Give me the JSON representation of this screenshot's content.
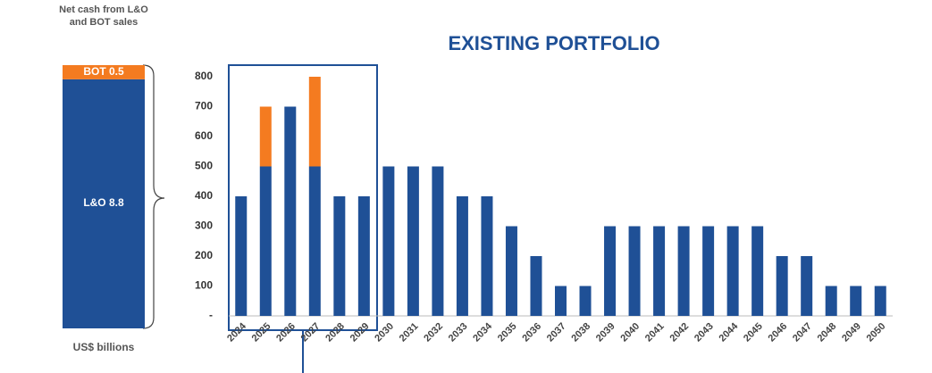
{
  "chart_data": {
    "type": "stacked_bar",
    "title": "EXISTING PORTFOLIO",
    "categories": [
      "2024",
      "2025",
      "2026",
      "2027",
      "2028",
      "2029",
      "2030",
      "2031",
      "2032",
      "2033",
      "2034",
      "2035",
      "2036",
      "2037",
      "2038",
      "2039",
      "2040",
      "2041",
      "2042",
      "2043",
      "2044",
      "2045",
      "2046",
      "2047",
      "2048",
      "2049",
      "2050"
    ],
    "series": [
      {
        "color": "#1f5096",
        "values": [
          400,
          500,
          700,
          500,
          400,
          400,
          500,
          500,
          500,
          400,
          400,
          300,
          200,
          100,
          100,
          300,
          300,
          300,
          300,
          300,
          300,
          300,
          200,
          200,
          100,
          100,
          100
        ]
      },
      {
        "color": "#f47b20",
        "values": [
          0,
          200,
          0,
          300,
          0,
          0,
          0,
          0,
          0,
          0,
          0,
          0,
          0,
          0,
          0,
          0,
          0,
          0,
          0,
          0,
          0,
          0,
          0,
          0,
          0,
          0,
          0
        ]
      }
    ],
    "ylim": [
      0,
      800
    ],
    "yticks": [
      {
        "value": 0,
        "label": "-"
      },
      100,
      200,
      300,
      400,
      500,
      600,
      700,
      800
    ],
    "summary": {
      "title": "Net cash from L&O and BOT sales",
      "unit": "US$ billions",
      "segments": [
        {
          "label": "L&O 8.8",
          "value": 8.8,
          "color": "#1f5096"
        },
        {
          "label": "BOT 0.5",
          "value": 0.5,
          "color": "#f47b20"
        }
      ]
    }
  }
}
